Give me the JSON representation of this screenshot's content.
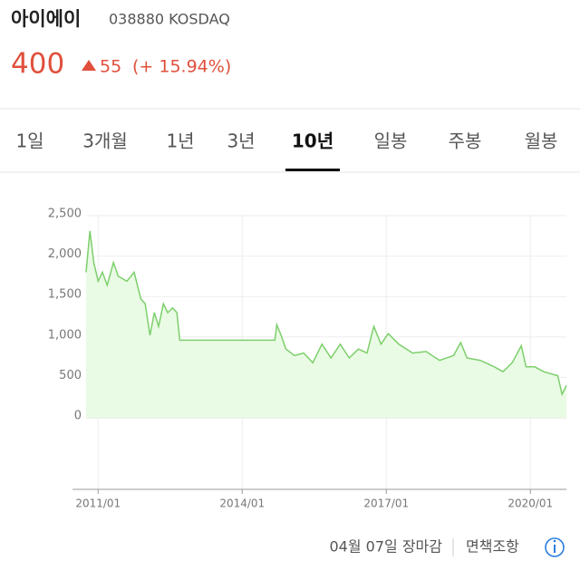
{
  "header": {
    "name": "아이에이",
    "code": "038880 KOSDAQ",
    "price": "400",
    "change": "55",
    "change_pct": "(+ 15.94%)"
  },
  "tabs": [
    "1일",
    "3개월",
    "1년",
    "3년",
    "10년",
    "일봉",
    "주봉",
    "월봉"
  ],
  "selected_tab": 4,
  "chart_data": {
    "type": "line",
    "color": "#7dcf6c",
    "area_color": "#e9fbe4",
    "x": [
      2010.75,
      2010.83,
      2010.91,
      2011.0,
      2011.09,
      2011.19,
      2011.32,
      2011.42,
      2011.6,
      2011.75,
      2011.89,
      2011.98,
      2012.08,
      2012.17,
      2012.26,
      2012.36,
      2012.45,
      2012.55,
      2012.64,
      2012.7,
      2014.68,
      2014.72,
      2014.81,
      2014.91,
      2015.09,
      2015.28,
      2015.47,
      2015.66,
      2015.85,
      2016.04,
      2016.23,
      2016.42,
      2016.6,
      2016.74,
      2016.89,
      2017.04,
      2017.26,
      2017.55,
      2017.83,
      2018.11,
      2018.4,
      2018.55,
      2018.68,
      2018.96,
      2019.25,
      2019.43,
      2019.62,
      2019.81,
      2019.91,
      2020.09,
      2020.28,
      2020.57,
      2020.66,
      2020.75
    ],
    "values": [
      1800,
      2310,
      1920,
      1690,
      1800,
      1640,
      1920,
      1750,
      1690,
      1800,
      1470,
      1410,
      1020,
      1300,
      1130,
      1410,
      1300,
      1360,
      1300,
      960,
      960,
      1150,
      1020,
      850,
      770,
      800,
      680,
      910,
      740,
      910,
      740,
      850,
      800,
      1130,
      910,
      1040,
      910,
      800,
      820,
      710,
      770,
      930,
      740,
      710,
      630,
      570,
      680,
      890,
      630,
      630,
      570,
      520,
      290,
      400
    ],
    "xlim": [
      2010.75,
      2020.75
    ],
    "xticks": [
      {
        "value": 2011,
        "label": "2011/01"
      },
      {
        "value": 2014,
        "label": "2014/01"
      },
      {
        "value": 2017,
        "label": "2017/01"
      },
      {
        "value": 2020,
        "label": "2020/01"
      }
    ],
    "ylim": [
      0,
      2500
    ],
    "yticks": [
      0,
      500,
      {
        "value": 1000,
        "label": "1,000"
      },
      {
        "value": 1500,
        "label": "1,500"
      },
      {
        "value": 2000,
        "label": "2,000"
      },
      {
        "value": 2500,
        "label": "2,500"
      }
    ],
    "grid": true
  },
  "footer": {
    "status": "04월 07일 장마감",
    "disclaimer": "면책조항"
  }
}
